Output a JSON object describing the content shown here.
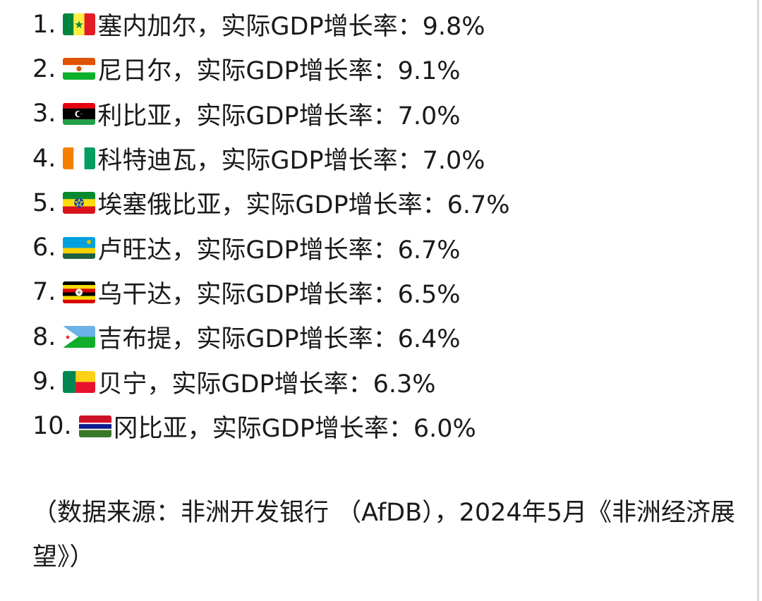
{
  "list": [
    {
      "num": "1.",
      "text": "塞内加尔，实际GDP增长率：9.8%",
      "flag": "senegal-flag-icon"
    },
    {
      "num": "2.",
      "text": "尼日尔，实际GDP增长率：9.1%",
      "flag": "niger-flag-icon"
    },
    {
      "num": "3.",
      "text": "利比亚，实际GDP增长率：7.0%",
      "flag": "libya-flag-icon"
    },
    {
      "num": "4.",
      "text": "科特迪瓦，实际GDP增长率：7.0%",
      "flag": "cote-divoire-flag-icon"
    },
    {
      "num": "5.",
      "text": "埃塞俄比亚，实际GDP增长率：6.7%",
      "flag": "ethiopia-flag-icon"
    },
    {
      "num": "6.",
      "text": "卢旺达，实际GDP增长率：6.7%",
      "flag": "rwanda-flag-icon"
    },
    {
      "num": "7.",
      "text": "乌干达，实际GDP增长率：6.5%",
      "flag": "uganda-flag-icon"
    },
    {
      "num": "8.",
      "text": "吉布提，实际GDP增长率：6.4%",
      "flag": "djibouti-flag-icon"
    },
    {
      "num": "9.",
      "text": "贝宁，实际GDP增长率：6.3%",
      "flag": "benin-flag-icon"
    },
    {
      "num": "10.",
      "text": "冈比亚，实际GDP增长率：6.0%",
      "flag": "gambia-flag-icon"
    }
  ],
  "source": "（数据来源：非洲开发银行 （AfDB），2024年5月《非洲经济展望》）"
}
